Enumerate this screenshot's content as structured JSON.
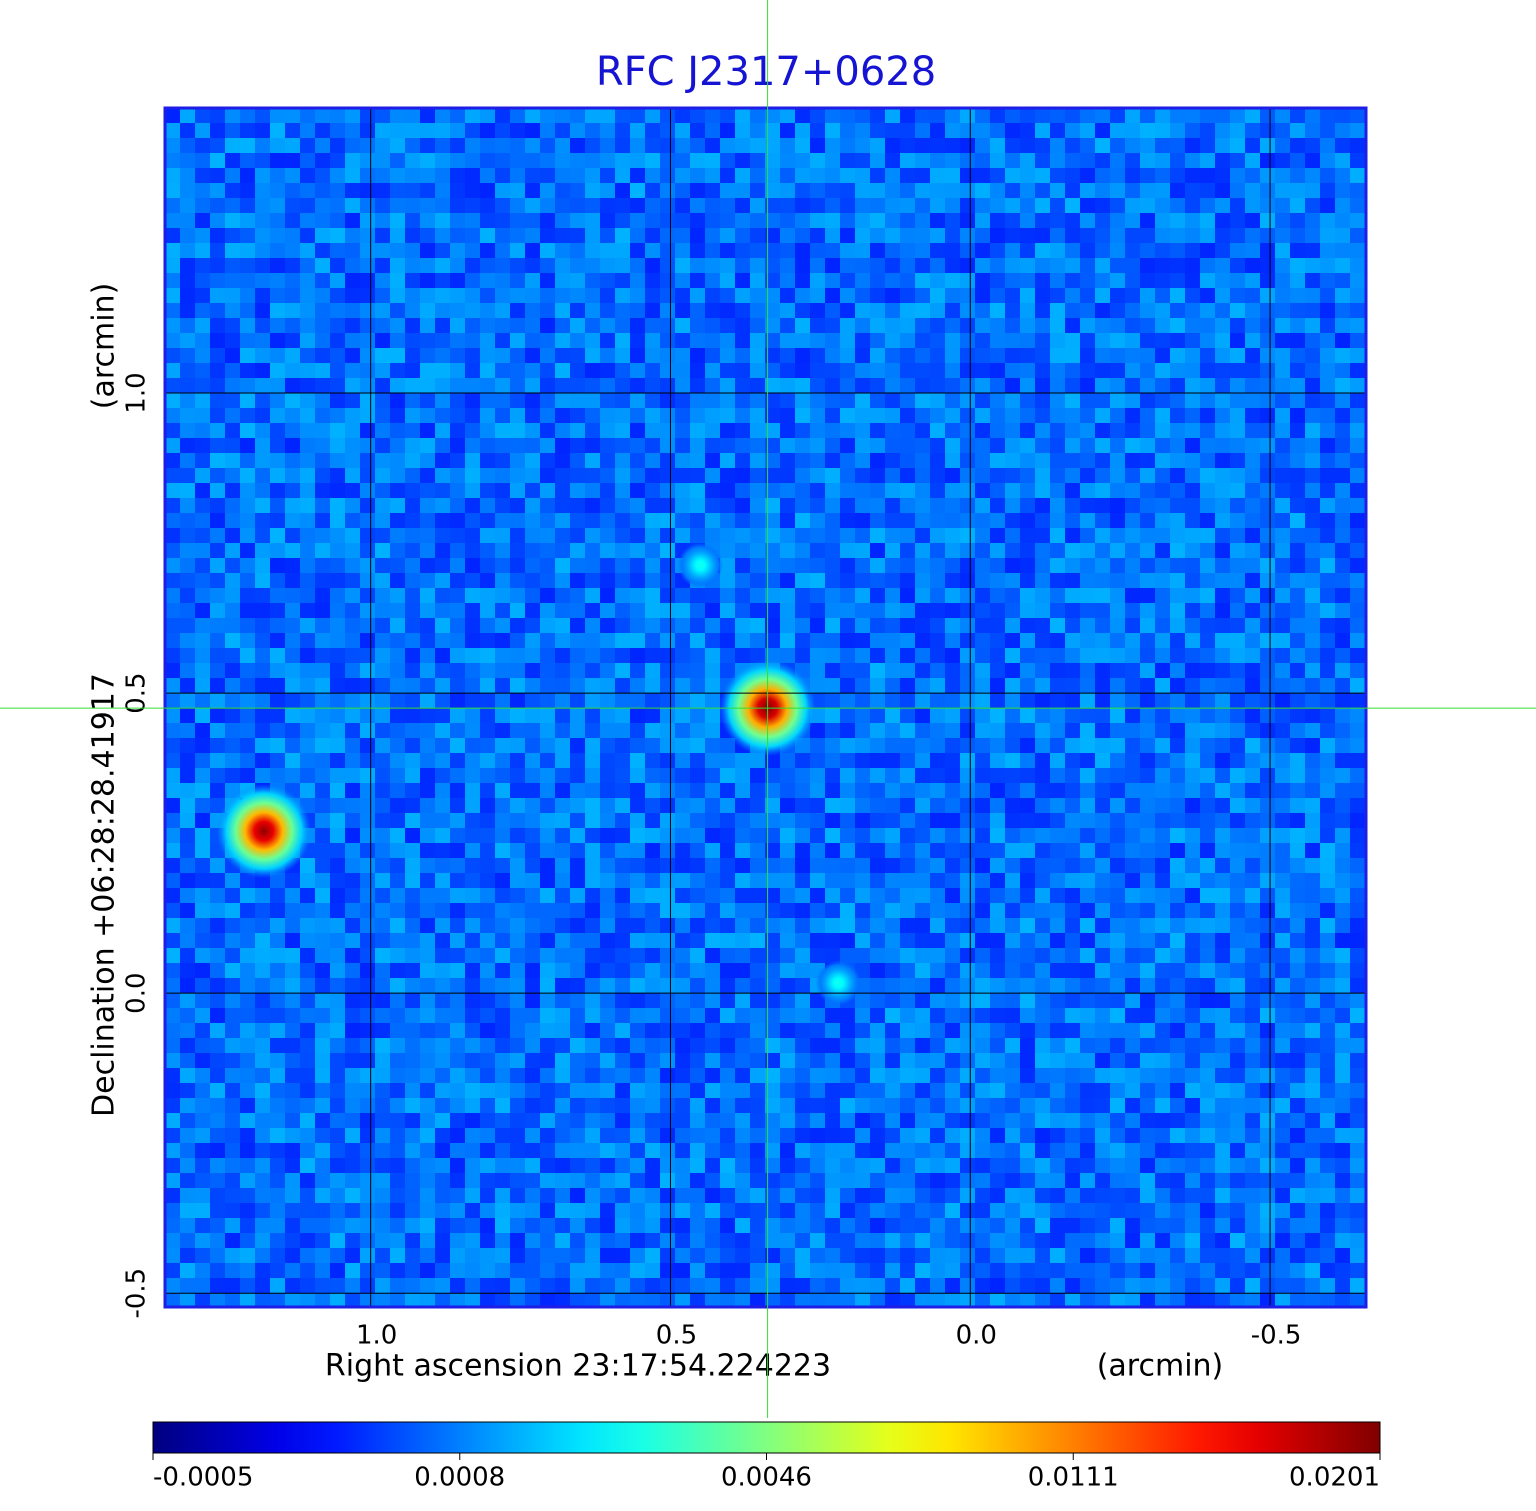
{
  "chart_data": {
    "type": "image",
    "title": "RFC J2317+0628",
    "x_label": "Right ascension  23:17:54.224223",
    "x_unit": "(arcmin)",
    "y_label": "Declination  +06:28:28.41917",
    "y_unit": "(arcmin)",
    "xlim": [
      1.343,
      -0.66
    ],
    "ylim": [
      -0.523,
      1.475
    ],
    "xticks": [
      {
        "value": 1,
        "label": "1.0"
      },
      0.5,
      {
        "value": 0,
        "label": "0.0"
      },
      -0.5
    ],
    "yticks": [
      -0.5,
      {
        "value": 0,
        "label": "0.0"
      },
      0.5,
      {
        "value": 1,
        "label": "1.0"
      }
    ],
    "grid": true,
    "colormap": "jet",
    "colorbar_ticks": [
      -0.0005,
      0.0008,
      0.0046,
      0.0111,
      0.0201
    ],
    "sources": {
      "x": [
        0.338,
        1.178,
        0.45,
        0.22
      ],
      "y": [
        0.475,
        0.27,
        0.713,
        0.017
      ],
      "peak": [
        0.0201,
        0.0195,
        0.003,
        0.003
      ]
    }
  }
}
